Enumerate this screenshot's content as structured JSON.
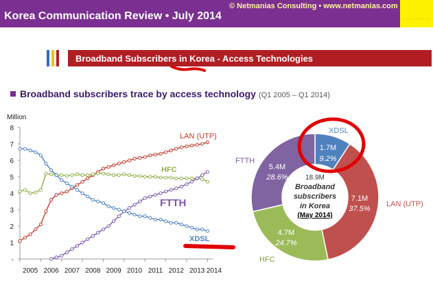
{
  "header": {
    "title": "Korea Communication Review • July 2014",
    "credit": "© Netmanias Consulting • www.netmanias.com"
  },
  "section": {
    "title": "Broadband Subscribers in Korea - Access Technologies"
  },
  "subtitle": {
    "title": "Broadband subscribers trace by access technology",
    "range": "(Q1 2005 – Q1 2014)"
  },
  "colors": {
    "header_bg": "#7a2f91",
    "banner_bg": "#b01e23",
    "lan": "#c0392b",
    "hfc": "#8fb04a",
    "ftth": "#7b5aa6",
    "xdsl": "#4f81bd",
    "annotation": "#e00000"
  },
  "chart_data": [
    {
      "type": "line",
      "ylabel": "Million",
      "ylim": [
        0,
        8
      ],
      "yticks": [
        "-",
        "1",
        "2",
        "3",
        "4",
        "5",
        "6",
        "7",
        "8"
      ],
      "xticks": [
        "2005",
        "2006",
        "2007",
        "2008",
        "2009",
        "2010",
        "2011",
        "2012",
        "2013",
        "2014"
      ],
      "grid": false,
      "series": [
        {
          "name": "LAN (UTP)",
          "color": "#c0392b",
          "x": [
            2005.0,
            2005.25,
            2005.5,
            2005.75,
            2006.0,
            2006.25,
            2006.5,
            2006.75,
            2007.0,
            2007.25,
            2007.5,
            2007.75,
            2008.0,
            2008.25,
            2008.5,
            2008.75,
            2009.0,
            2009.25,
            2009.5,
            2009.75,
            2010.0,
            2010.25,
            2010.5,
            2010.75,
            2011.0,
            2011.25,
            2011.5,
            2011.75,
            2012.0,
            2012.25,
            2012.5,
            2012.75,
            2013.0,
            2013.25,
            2013.5,
            2013.75,
            2014.0
          ],
          "values": [
            1.1,
            1.3,
            1.5,
            1.8,
            2.1,
            2.9,
            3.6,
            3.9,
            4.0,
            4.1,
            4.3,
            4.5,
            4.7,
            4.9,
            5.1,
            5.3,
            5.5,
            5.6,
            5.7,
            5.8,
            5.9,
            6.0,
            6.1,
            6.15,
            6.2,
            6.3,
            6.35,
            6.4,
            6.5,
            6.6,
            6.7,
            6.8,
            6.85,
            6.9,
            6.95,
            7.0,
            7.1
          ]
        },
        {
          "name": "HFC",
          "color": "#8fb04a",
          "x": [
            2005.0,
            2005.25,
            2005.5,
            2005.75,
            2006.0,
            2006.25,
            2006.5,
            2006.75,
            2007.0,
            2007.25,
            2007.5,
            2007.75,
            2008.0,
            2008.25,
            2008.5,
            2008.75,
            2009.0,
            2009.25,
            2009.5,
            2009.75,
            2010.0,
            2010.25,
            2010.5,
            2010.75,
            2011.0,
            2011.25,
            2011.5,
            2011.75,
            2012.0,
            2012.25,
            2012.5,
            2012.75,
            2013.0,
            2013.25,
            2013.5,
            2013.75,
            2014.0
          ],
          "values": [
            4.1,
            4.2,
            4.0,
            4.05,
            4.2,
            5.2,
            5.15,
            5.1,
            5.1,
            5.05,
            5.1,
            5.15,
            5.1,
            5.1,
            5.15,
            5.2,
            5.2,
            5.15,
            5.1,
            5.1,
            5.15,
            5.1,
            5.05,
            5.05,
            5.0,
            5.0,
            5.0,
            4.95,
            4.95,
            4.95,
            4.9,
            4.9,
            4.9,
            4.9,
            4.9,
            4.85,
            4.7
          ]
        },
        {
          "name": "FTTH",
          "color": "#7b5aa6",
          "x": [
            2006.5,
            2006.75,
            2007.0,
            2007.25,
            2007.5,
            2007.75,
            2008.0,
            2008.25,
            2008.5,
            2008.75,
            2009.0,
            2009.25,
            2009.5,
            2009.75,
            2010.0,
            2010.25,
            2010.5,
            2010.75,
            2011.0,
            2011.25,
            2011.5,
            2011.75,
            2012.0,
            2012.25,
            2012.5,
            2012.75,
            2013.0,
            2013.25,
            2013.5,
            2013.75,
            2014.0
          ],
          "values": [
            0.0,
            0.1,
            0.2,
            0.4,
            0.6,
            0.8,
            1.0,
            1.2,
            1.4,
            1.6,
            1.8,
            2.0,
            2.3,
            2.6,
            2.9,
            3.1,
            3.3,
            3.5,
            3.7,
            3.8,
            3.9,
            4.0,
            4.1,
            4.2,
            4.3,
            4.4,
            4.55,
            4.7,
            4.9,
            5.1,
            5.3
          ]
        },
        {
          "name": "XDSL",
          "color": "#4f81bd",
          "x": [
            2005.0,
            2005.25,
            2005.5,
            2005.75,
            2006.0,
            2006.25,
            2006.5,
            2006.75,
            2007.0,
            2007.25,
            2007.5,
            2007.75,
            2008.0,
            2008.25,
            2008.5,
            2008.75,
            2009.0,
            2009.25,
            2009.5,
            2009.75,
            2010.0,
            2010.25,
            2010.5,
            2010.75,
            2011.0,
            2011.25,
            2011.5,
            2011.75,
            2012.0,
            2012.25,
            2012.5,
            2012.75,
            2013.0,
            2013.25,
            2013.5,
            2013.75,
            2014.0
          ],
          "values": [
            6.7,
            6.7,
            6.6,
            6.5,
            6.3,
            5.8,
            5.4,
            5.1,
            4.8,
            4.6,
            4.4,
            4.2,
            4.0,
            3.8,
            3.6,
            3.5,
            3.4,
            3.2,
            3.1,
            3.0,
            2.9,
            2.8,
            2.7,
            2.6,
            2.6,
            2.5,
            2.4,
            2.4,
            2.3,
            2.2,
            2.2,
            2.1,
            2.0,
            1.9,
            1.8,
            1.8,
            1.7
          ]
        }
      ],
      "labels": {
        "lan": "LAN (UTP)",
        "hfc": "HFC",
        "ftth": "FTTH",
        "xdsl": "XDSL"
      }
    },
    {
      "type": "pie",
      "donut": true,
      "center_lines": [
        "18.9M",
        "Broadband",
        "subscribers",
        "in Korea"
      ],
      "center_date": "(May 2014)",
      "slices": [
        {
          "name": "XDSL",
          "value_label": "1.7M",
          "percent_label": "9.2%",
          "percent": 9.2,
          "color": "#4f81bd"
        },
        {
          "name": "LAN (UTP)",
          "value_label": "7.1M",
          "percent_label": "37.5%",
          "percent": 37.5,
          "color": "#c0504d"
        },
        {
          "name": "HFC",
          "value_label": "4.7M",
          "percent_label": "24.7%",
          "percent": 24.7,
          "color": "#9bbb59"
        },
        {
          "name": "FTTH",
          "value_label": "5.4M",
          "percent_label": "28.6%",
          "percent": 28.6,
          "color": "#8064a2"
        }
      ]
    }
  ]
}
